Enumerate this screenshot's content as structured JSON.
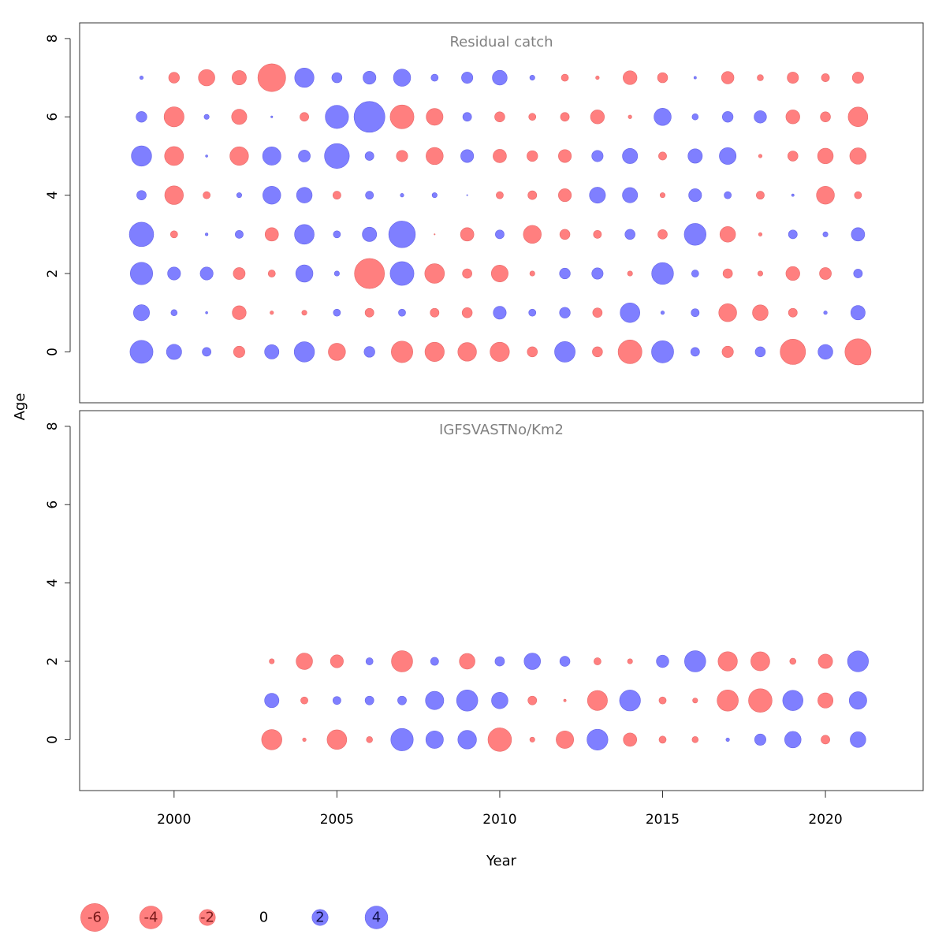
{
  "chart_data": {
    "type": "scatter",
    "subtype": "bubble",
    "xlabel": "Year",
    "ylabel": "Age",
    "xlim": [
      1997.1,
      2023.0
    ],
    "ylim": [
      -1.3,
      8.4
    ],
    "x_ticks": [
      2000,
      2005,
      2010,
      2015,
      2020
    ],
    "y_ticks": [
      0,
      2,
      4,
      6,
      8
    ],
    "colors": {
      "negative": "#FF7F7F",
      "negative_stroke": "#E86A6A",
      "positive": "#7F7FFF",
      "positive_stroke": "#6565E8",
      "axis": "#333333",
      "title": "#808080"
    },
    "panels": [
      {
        "title": "Residual catch",
        "years": [
          1999,
          2000,
          2001,
          2002,
          2003,
          2004,
          2005,
          2006,
          2007,
          2008,
          2009,
          2010,
          2011,
          2012,
          2013,
          2014,
          2015,
          2016,
          2017,
          2018,
          2019,
          2020,
          2021
        ],
        "ages": [
          0,
          1,
          2,
          3,
          4,
          5,
          6,
          7
        ],
        "residuals": [
          [
            4.1,
            1.8,
            0.6,
            -1.0,
            1.6,
            3.2,
            -2.3,
            0.9,
            -3.6,
            -2.9,
            -2.7,
            -2.9,
            -0.8,
            3.3,
            -0.8,
            -4.4,
            3.8,
            0.6,
            -1.0,
            0.8,
            -5.0,
            1.7,
            -5.3
          ],
          [
            2.0,
            0.3,
            0.04,
            -1.5,
            -0.1,
            -0.2,
            0.4,
            -0.6,
            0.4,
            -0.6,
            -0.8,
            1.3,
            0.4,
            0.9,
            -0.7,
            3.0,
            0.1,
            0.5,
            -2.5,
            -1.9,
            -0.6,
            0.1,
            1.6
          ],
          [
            3.9,
            1.3,
            1.3,
            -1.1,
            -0.4,
            2.3,
            0.2,
            -7.0,
            4.4,
            -3.0,
            -0.7,
            -2.2,
            -0.2,
            0.9,
            1.0,
            -0.2,
            3.7,
            0.4,
            -0.7,
            -0.2,
            -1.5,
            -1.1,
            0.6
          ],
          [
            4.6,
            -0.4,
            0.06,
            0.5,
            -1.4,
            3.0,
            0.4,
            1.6,
            5.5,
            -0.01,
            -1.4,
            0.6,
            -2.5,
            -0.8,
            -0.5,
            0.8,
            -0.7,
            3.7,
            -1.9,
            -0.1,
            0.6,
            0.2,
            1.4
          ],
          [
            0.7,
            -2.7,
            -0.4,
            0.2,
            2.5,
            1.9,
            -0.5,
            0.5,
            0.1,
            0.2,
            0.01,
            -0.4,
            -0.6,
            -1.3,
            2.0,
            1.8,
            -0.2,
            1.3,
            0.4,
            -0.5,
            0.05,
            -2.5,
            -0.4
          ],
          [
            3.2,
            -2.8,
            0.04,
            -2.7,
            2.6,
            1.1,
            4.8,
            0.6,
            -1.0,
            -2.3,
            1.3,
            -1.4,
            -0.9,
            -1.3,
            1.0,
            1.8,
            -0.5,
            1.6,
            2.2,
            -0.1,
            -0.8,
            -1.9,
            -2.1
          ],
          [
            0.9,
            -3.1,
            0.2,
            -1.8,
            0.03,
            -0.6,
            4.2,
            7.4,
            -4.4,
            -2.2,
            0.6,
            -0.8,
            -0.4,
            -0.6,
            -1.5,
            -0.1,
            2.3,
            0.3,
            0.9,
            1.2,
            -1.5,
            -0.8,
            -3.0
          ],
          [
            0.1,
            -0.9,
            -2.1,
            -1.6,
            -6.0,
            2.9,
            0.8,
            1.3,
            2.3,
            0.4,
            1.0,
            1.7,
            0.2,
            -0.4,
            -0.1,
            -1.5,
            -0.8,
            0.05,
            -1.2,
            -0.3,
            -1.0,
            -0.5,
            -1.0
          ]
        ]
      },
      {
        "title": "IGFSVASTNo/Km2",
        "years": [
          2003,
          2004,
          2005,
          2006,
          2007,
          2008,
          2009,
          2010,
          2011,
          2012,
          2013,
          2014,
          2015,
          2016,
          2017,
          2018,
          2019,
          2020,
          2021
        ],
        "ages": [
          0,
          1,
          2
        ],
        "residuals": [
          [
            -3.2,
            -0.1,
            -3.0,
            -0.3,
            3.9,
            2.4,
            2.7,
            -4.3,
            -0.2,
            -2.4,
            3.4,
            -1.4,
            -0.4,
            -0.3,
            0.1,
            1.0,
            2.1,
            -0.6,
            1.9
          ],
          [
            1.6,
            -0.4,
            0.5,
            0.6,
            0.6,
            2.6,
            3.5,
            2.1,
            -0.6,
            -0.05,
            -3.1,
            3.4,
            -0.4,
            -0.2,
            -3.5,
            -4.3,
            3.2,
            -1.8,
            2.4
          ],
          [
            -0.2,
            -2.1,
            -1.3,
            0.4,
            -3.5,
            0.5,
            -1.9,
            0.7,
            2.1,
            0.8,
            -0.4,
            -0.2,
            1.2,
            3.5,
            -2.9,
            -2.8,
            -0.3,
            -1.6,
            3.4
          ]
        ]
      }
    ],
    "legend": {
      "position": "bottom",
      "values": [
        -6,
        -4,
        -2,
        0,
        2,
        4
      ],
      "labels": [
        "-6",
        "-4",
        "-2",
        "0",
        "2",
        "4"
      ]
    }
  }
}
